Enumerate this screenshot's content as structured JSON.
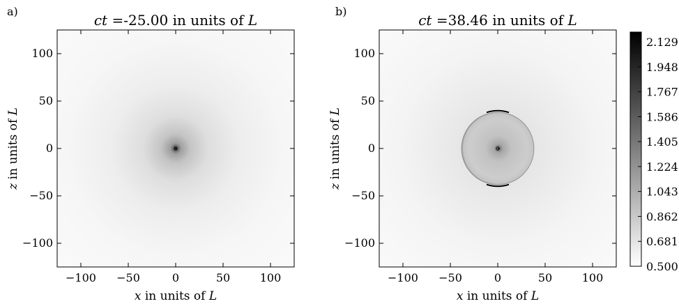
{
  "figure": {
    "panel_labels": [
      "a)",
      "b)"
    ]
  },
  "chart_data": [
    {
      "type": "heatmap",
      "panel_label": "a)",
      "title_parts": {
        "var": "ct",
        "text": " =-25.00 in units of ",
        "unit": "L"
      },
      "xlabel_parts": {
        "var": "x",
        "text": " in units of ",
        "unit": "L"
      },
      "ylabel_parts": {
        "var": "z",
        "text": " in units of ",
        "unit": "L"
      },
      "xlim": [
        -125,
        125
      ],
      "ylim": [
        -125,
        125
      ],
      "xticks": [
        -100,
        -50,
        0,
        50,
        100
      ],
      "yticks": [
        -100,
        -50,
        0,
        50,
        100
      ],
      "xtick_labels": [
        "−100",
        "−50",
        "0",
        "50",
        "100"
      ],
      "ytick_labels": [
        "−100",
        "−50",
        "0",
        "50",
        "100"
      ],
      "field": {
        "description": "radially decaying intensity centred at origin",
        "center": [
          0,
          0
        ],
        "peak_value": 2.2,
        "background_value": 0.5,
        "shell_radius": null
      }
    },
    {
      "type": "heatmap",
      "panel_label": "b)",
      "title_parts": {
        "var": "ct",
        "text": " =38.46 in units of ",
        "unit": "L"
      },
      "xlabel_parts": {
        "var": "x",
        "text": " in units of ",
        "unit": "L"
      },
      "ylabel_parts": {
        "var": "z",
        "text": " in units of ",
        "unit": "L"
      },
      "xlim": [
        -125,
        125
      ],
      "ylim": [
        -125,
        125
      ],
      "xticks": [
        -100,
        -50,
        0,
        50,
        100
      ],
      "yticks": [
        -100,
        -50,
        0,
        50,
        100
      ],
      "xtick_labels": [
        "−100",
        "−50",
        "0",
        "50",
        "100"
      ],
      "ytick_labels": [
        "−100",
        "−50",
        "0",
        "50",
        "100"
      ],
      "field": {
        "description": "uniform disk of elevated intensity with central peak and dark rim",
        "center": [
          0,
          0
        ],
        "peak_value": 2.2,
        "background_value": 0.5,
        "shell_radius": 38.46
      },
      "colorbar": {
        "cmap": "gray_r",
        "vmin": 0.5,
        "vmax": 2.2,
        "ticks": [
          0.5,
          0.681,
          0.862,
          1.043,
          1.224,
          1.405,
          1.586,
          1.767,
          1.948,
          2.129
        ],
        "tick_labels": [
          "0.500",
          "0.681",
          "0.862",
          "1.043",
          "1.224",
          "1.405",
          "1.586",
          "1.767",
          "1.948",
          "2.129"
        ]
      }
    }
  ]
}
